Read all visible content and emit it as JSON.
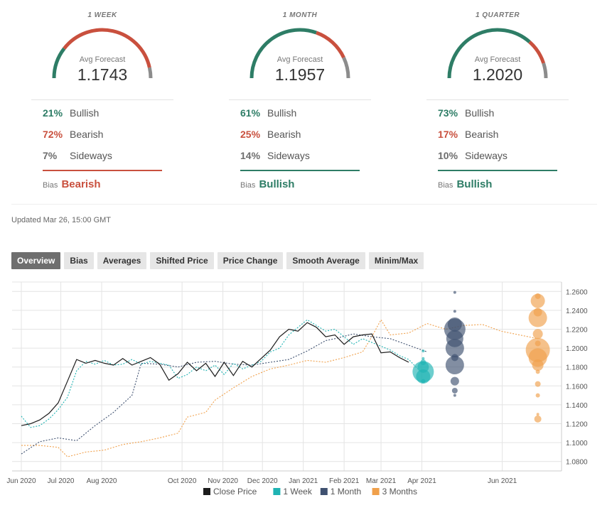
{
  "colors": {
    "bullish": "#2e7d66",
    "bearish": "#c9503e",
    "sideways": "#8c8c8c",
    "close": "#1c1c1c",
    "week": "#1fb3b3",
    "month": "#3f5170",
    "quarter": "#f0a04b"
  },
  "forecasts": [
    {
      "period": "1 WEEK",
      "avg_label": "Avg Forecast",
      "avg": "1.1743",
      "bullish_pct": "21%",
      "bearish_pct": "72%",
      "sideways_pct": "7%",
      "bullish_label": "Bullish",
      "bearish_label": "Bearish",
      "sideways_label": "Sideways",
      "bias_label": "Bias",
      "bias": "Bearish",
      "gauge": {
        "bullish": 0.21,
        "bearish": 0.72,
        "sideways": 0.07
      }
    },
    {
      "period": "1 MONTH",
      "avg_label": "Avg Forecast",
      "avg": "1.1957",
      "bullish_pct": "61%",
      "bearish_pct": "25%",
      "sideways_pct": "14%",
      "bullish_label": "Bullish",
      "bearish_label": "Bearish",
      "sideways_label": "Sideways",
      "bias_label": "Bias",
      "bias": "Bullish",
      "gauge": {
        "bullish": 0.61,
        "bearish": 0.25,
        "sideways": 0.14
      }
    },
    {
      "period": "1 QUARTER",
      "avg_label": "Avg Forecast",
      "avg": "1.2020",
      "bullish_pct": "73%",
      "bearish_pct": "17%",
      "sideways_pct": "10%",
      "bullish_label": "Bullish",
      "bearish_label": "Bearish",
      "sideways_label": "Sideways",
      "bias_label": "Bias",
      "bias": "Bullish",
      "gauge": {
        "bullish": 0.73,
        "bearish": 0.17,
        "sideways": 0.1
      }
    }
  ],
  "updated": "Updated Mar 26, 15:00 GMT",
  "tabs": [
    "Overview",
    "Bias",
    "Averages",
    "Shifted Price",
    "Price Change",
    "Smooth Average",
    "Minim/Max"
  ],
  "active_tab": 0,
  "chart_data": {
    "type": "line",
    "x_axis": [
      "Jun 2020",
      "Jul 2020",
      "Aug 2020",
      "Oct 2020",
      "Nov 2020",
      "Dec 2020",
      "Jan 2021",
      "Feb 2021",
      "Mar 2021",
      "Apr 2021",
      "Jun 2021"
    ],
    "y_ticks": [
      "1.2600",
      "1.2400",
      "1.2200",
      "1.2000",
      "1.1800",
      "1.1600",
      "1.1400",
      "1.1200",
      "1.1000",
      "1.0800"
    ],
    "ylim": [
      1.07,
      1.27
    ],
    "grid": true,
    "legend_position": "bottom",
    "series": [
      {
        "name": "Close Price",
        "color": "#1c1c1c",
        "dash": "solid",
        "points": [
          [
            "2020-06-01",
            1.118
          ],
          [
            "2020-06-08",
            1.12
          ],
          [
            "2020-06-15",
            1.124
          ],
          [
            "2020-06-22",
            1.131
          ],
          [
            "2020-06-29",
            1.142
          ],
          [
            "2020-07-06",
            1.165
          ],
          [
            "2020-07-13",
            1.188
          ],
          [
            "2020-07-20",
            1.184
          ],
          [
            "2020-07-27",
            1.187
          ],
          [
            "2020-08-03",
            1.184
          ],
          [
            "2020-08-10",
            1.182
          ],
          [
            "2020-08-17",
            1.189
          ],
          [
            "2020-08-24",
            1.182
          ],
          [
            "2020-08-31",
            1.186
          ],
          [
            "2020-09-07",
            1.19
          ],
          [
            "2020-09-14",
            1.183
          ],
          [
            "2020-09-21",
            1.166
          ],
          [
            "2020-09-28",
            1.173
          ],
          [
            "2020-10-05",
            1.185
          ],
          [
            "2020-10-12",
            1.176
          ],
          [
            "2020-10-19",
            1.184
          ],
          [
            "2020-10-26",
            1.17
          ],
          [
            "2020-11-02",
            1.185
          ],
          [
            "2020-11-09",
            1.171
          ],
          [
            "2020-11-16",
            1.186
          ],
          [
            "2020-11-23",
            1.18
          ],
          [
            "2020-11-30",
            1.189
          ],
          [
            "2020-12-07",
            1.198
          ],
          [
            "2020-12-14",
            1.212
          ],
          [
            "2020-12-21",
            1.22
          ],
          [
            "2020-12-28",
            1.218
          ],
          [
            "2021-01-04",
            1.227
          ],
          [
            "2021-01-11",
            1.222
          ],
          [
            "2021-01-18",
            1.212
          ],
          [
            "2021-01-25",
            1.214
          ],
          [
            "2021-02-01",
            1.204
          ],
          [
            "2021-02-08",
            1.212
          ],
          [
            "2021-02-15",
            1.214
          ],
          [
            "2021-02-22",
            1.215
          ],
          [
            "2021-03-01",
            1.195
          ],
          [
            "2021-03-08",
            1.196
          ],
          [
            "2021-03-15",
            1.19
          ],
          [
            "2021-03-22",
            1.185
          ]
        ]
      },
      {
        "name": "1 Week",
        "color": "#1fb3b3",
        "dash": "2,2",
        "points": [
          [
            "2020-06-01",
            1.128
          ],
          [
            "2020-06-08",
            1.116
          ],
          [
            "2020-06-15",
            1.118
          ],
          [
            "2020-06-22",
            1.125
          ],
          [
            "2020-06-29",
            1.135
          ],
          [
            "2020-07-06",
            1.148
          ],
          [
            "2020-07-13",
            1.176
          ],
          [
            "2020-07-20",
            1.186
          ],
          [
            "2020-07-27",
            1.183
          ],
          [
            "2020-08-03",
            1.187
          ],
          [
            "2020-08-10",
            1.182
          ],
          [
            "2020-08-17",
            1.183
          ],
          [
            "2020-08-24",
            1.188
          ],
          [
            "2020-08-31",
            1.183
          ],
          [
            "2020-09-07",
            1.186
          ],
          [
            "2020-09-14",
            1.184
          ],
          [
            "2020-09-21",
            1.182
          ],
          [
            "2020-09-28",
            1.168
          ],
          [
            "2020-10-05",
            1.172
          ],
          [
            "2020-10-12",
            1.18
          ],
          [
            "2020-10-19",
            1.176
          ],
          [
            "2020-10-26",
            1.182
          ],
          [
            "2020-11-02",
            1.172
          ],
          [
            "2020-11-09",
            1.184
          ],
          [
            "2020-11-16",
            1.178
          ],
          [
            "2020-11-23",
            1.182
          ],
          [
            "2020-11-30",
            1.186
          ],
          [
            "2020-12-07",
            1.196
          ],
          [
            "2020-12-14",
            1.2
          ],
          [
            "2020-12-21",
            1.214
          ],
          [
            "2020-12-28",
            1.222
          ],
          [
            "2021-01-04",
            1.23
          ],
          [
            "2021-01-11",
            1.224
          ],
          [
            "2021-01-18",
            1.218
          ],
          [
            "2021-01-25",
            1.22
          ],
          [
            "2021-02-01",
            1.212
          ],
          [
            "2021-02-08",
            1.204
          ],
          [
            "2021-02-15",
            1.21
          ],
          [
            "2021-02-22",
            1.206
          ],
          [
            "2021-03-01",
            1.202
          ],
          [
            "2021-03-08",
            1.198
          ],
          [
            "2021-03-15",
            1.192
          ],
          [
            "2021-03-22",
            1.188
          ],
          [
            "2021-03-29",
            1.178
          ]
        ]
      },
      {
        "name": "1 Month",
        "color": "#3f5170",
        "dash": "2,2",
        "points": [
          [
            "2020-06-01",
            1.088
          ],
          [
            "2020-06-15",
            1.101
          ],
          [
            "2020-06-29",
            1.105
          ],
          [
            "2020-07-13",
            1.102
          ],
          [
            "2020-07-27",
            1.118
          ],
          [
            "2020-08-10",
            1.132
          ],
          [
            "2020-08-24",
            1.15
          ],
          [
            "2020-08-31",
            1.184
          ],
          [
            "2020-09-14",
            1.183
          ],
          [
            "2020-09-28",
            1.18
          ],
          [
            "2020-10-12",
            1.185
          ],
          [
            "2020-10-26",
            1.186
          ],
          [
            "2020-11-09",
            1.183
          ],
          [
            "2020-11-23",
            1.182
          ],
          [
            "2020-12-07",
            1.185
          ],
          [
            "2020-12-21",
            1.188
          ],
          [
            "2021-01-04",
            1.197
          ],
          [
            "2021-01-18",
            1.208
          ],
          [
            "2021-01-25",
            1.21
          ],
          [
            "2021-02-08",
            1.215
          ],
          [
            "2021-02-22",
            1.212
          ],
          [
            "2021-03-08",
            1.21
          ],
          [
            "2021-03-22",
            1.203
          ],
          [
            "2021-04-05",
            1.196
          ]
        ]
      },
      {
        "name": "3 Months",
        "color": "#f0a04b",
        "dash": "2,2",
        "points": [
          [
            "2020-06-01",
            1.097
          ],
          [
            "2020-06-15",
            1.097
          ],
          [
            "2020-06-29",
            1.095
          ],
          [
            "2020-07-06",
            1.085
          ],
          [
            "2020-07-20",
            1.09
          ],
          [
            "2020-08-03",
            1.092
          ],
          [
            "2020-08-17",
            1.098
          ],
          [
            "2020-08-31",
            1.101
          ],
          [
            "2020-09-14",
            1.105
          ],
          [
            "2020-09-28",
            1.11
          ],
          [
            "2020-10-05",
            1.127
          ],
          [
            "2020-10-19",
            1.132
          ],
          [
            "2020-10-26",
            1.145
          ],
          [
            "2020-11-09",
            1.158
          ],
          [
            "2020-11-23",
            1.17
          ],
          [
            "2020-12-07",
            1.178
          ],
          [
            "2020-12-21",
            1.182
          ],
          [
            "2021-01-04",
            1.187
          ],
          [
            "2021-01-18",
            1.185
          ],
          [
            "2021-02-01",
            1.19
          ],
          [
            "2021-02-15",
            1.196
          ],
          [
            "2021-02-22",
            1.212
          ],
          [
            "2021-03-01",
            1.23
          ],
          [
            "2021-03-08",
            1.214
          ],
          [
            "2021-03-22",
            1.216
          ],
          [
            "2021-04-05",
            1.226
          ],
          [
            "2021-04-19",
            1.22
          ],
          [
            "2021-05-03",
            1.224
          ],
          [
            "2021-05-17",
            1.225
          ],
          [
            "2021-05-31",
            1.218
          ],
          [
            "2021-06-14",
            1.214
          ],
          [
            "2021-06-28",
            1.21
          ]
        ]
      }
    ],
    "distributions": [
      {
        "name": "1 Week",
        "color": "#1fb3b3",
        "date": "2021-04-02",
        "bubbles": [
          [
            1.197,
            2
          ],
          [
            1.189,
            2
          ],
          [
            1.185,
            4
          ],
          [
            1.18,
            8
          ],
          [
            1.175,
            15
          ],
          [
            1.17,
            10
          ],
          [
            1.165,
            3
          ]
        ]
      },
      {
        "name": "1 Month",
        "color": "#3f5170",
        "date": "2021-04-26",
        "bubbles": [
          [
            1.259,
            2
          ],
          [
            1.239,
            2
          ],
          [
            1.225,
            10
          ],
          [
            1.22,
            15
          ],
          [
            1.21,
            12
          ],
          [
            1.2,
            13
          ],
          [
            1.19,
            5
          ],
          [
            1.182,
            13
          ],
          [
            1.165,
            6
          ],
          [
            1.155,
            4
          ],
          [
            1.15,
            2
          ]
        ]
      },
      {
        "name": "3 Months",
        "color": "#f0a04b",
        "date": "2021-06-28",
        "bubbles": [
          [
            1.255,
            4
          ],
          [
            1.25,
            10
          ],
          [
            1.238,
            6
          ],
          [
            1.232,
            13
          ],
          [
            1.215,
            7
          ],
          [
            1.205,
            4
          ],
          [
            1.198,
            17
          ],
          [
            1.19,
            13
          ],
          [
            1.182,
            8
          ],
          [
            1.175,
            3
          ],
          [
            1.162,
            4
          ],
          [
            1.15,
            3
          ],
          [
            1.13,
            2
          ],
          [
            1.125,
            5
          ]
        ]
      }
    ]
  }
}
